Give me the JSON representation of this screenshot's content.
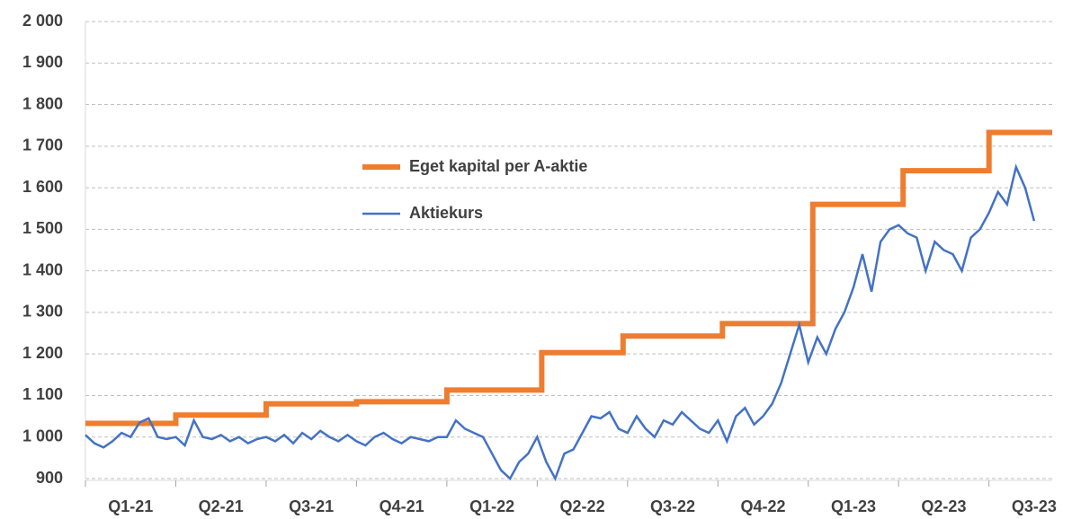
{
  "chart_data": {
    "type": "line",
    "categories": [
      "Q1-21",
      "Q2-21",
      "Q3-21",
      "Q4-21",
      "Q1-22",
      "Q2-22",
      "Q3-22",
      "Q4-22",
      "Q1-23",
      "Q2-23",
      "Q3-23"
    ],
    "xlim": [
      0,
      10.7
    ],
    "ylim": [
      900,
      2000
    ],
    "yticks": [
      {
        "value": 2000,
        "label": "2 000"
      },
      {
        "value": 1900,
        "label": "1 900"
      },
      {
        "value": 1800,
        "label": "1 800"
      },
      {
        "value": 1700,
        "label": "1 700"
      },
      {
        "value": 1600,
        "label": "1 600"
      },
      {
        "value": 1500,
        "label": "1 500"
      },
      {
        "value": 1400,
        "label": "1 400"
      },
      {
        "value": 1300,
        "label": "1 300"
      },
      {
        "value": 1200,
        "label": "1 200"
      },
      {
        "value": 1100,
        "label": "1 100"
      },
      {
        "value": 1000,
        "label": "1 000"
      },
      900
    ],
    "grid": true,
    "series": [
      {
        "name": "Eget kapital per A-aktie",
        "color": "#ed7d31",
        "x": [
          0,
          1,
          1,
          2,
          2,
          3,
          3,
          4,
          4,
          5.05,
          5.05,
          5.95,
          5.95,
          7.05,
          7.05,
          8.05,
          8.05,
          9.05,
          9.05,
          10,
          10,
          10.7
        ],
        "values": [
          1033,
          1033,
          1053,
          1053,
          1080,
          1080,
          1085,
          1085,
          1113,
          1113,
          1203,
          1203,
          1243,
          1243,
          1273,
          1273,
          1560,
          1560,
          1641,
          1641,
          1733,
          1733
        ]
      },
      {
        "name": "Aktiekurs",
        "color": "#4472c4",
        "x": [
          0,
          0.1,
          0.2,
          0.3,
          0.4,
          0.5,
          0.6,
          0.7,
          0.8,
          0.9,
          1,
          1.1,
          1.2,
          1.3,
          1.4,
          1.5,
          1.6,
          1.7,
          1.8,
          1.9,
          2,
          2.1,
          2.2,
          2.3,
          2.4,
          2.5,
          2.6,
          2.7,
          2.8,
          2.9,
          3,
          3.1,
          3.2,
          3.3,
          3.4,
          3.5,
          3.6,
          3.7,
          3.8,
          3.9,
          4,
          4.1,
          4.2,
          4.3,
          4.4,
          4.5,
          4.6,
          4.7,
          4.8,
          4.9,
          5,
          5.1,
          5.2,
          5.3,
          5.4,
          5.5,
          5.6,
          5.7,
          5.8,
          5.9,
          6,
          6.1,
          6.2,
          6.3,
          6.4,
          6.5,
          6.6,
          6.7,
          6.8,
          6.9,
          7,
          7.1,
          7.2,
          7.3,
          7.4,
          7.5,
          7.6,
          7.7,
          7.8,
          7.9,
          8,
          8.1,
          8.2,
          8.3,
          8.4,
          8.5,
          8.6,
          8.7,
          8.8,
          8.9,
          9,
          9.1,
          9.2,
          9.3,
          9.4,
          9.5,
          9.6,
          9.7,
          9.8,
          9.9,
          10,
          10.1,
          10.2,
          10.3,
          10.4,
          10.5
        ],
        "values": [
          1005,
          985,
          975,
          990,
          1010,
          1000,
          1035,
          1045,
          1000,
          995,
          1000,
          980,
          1040,
          1000,
          995,
          1005,
          990,
          1000,
          985,
          995,
          1000,
          990,
          1005,
          985,
          1010,
          995,
          1015,
          1000,
          990,
          1005,
          990,
          980,
          1000,
          1010,
          995,
          985,
          1000,
          995,
          990,
          1000,
          1000,
          1040,
          1020,
          1010,
          1000,
          960,
          920,
          900,
          940,
          960,
          1000,
          940,
          900,
          960,
          970,
          1010,
          1050,
          1045,
          1060,
          1020,
          1010,
          1050,
          1020,
          1000,
          1040,
          1030,
          1060,
          1040,
          1020,
          1010,
          1040,
          990,
          1050,
          1070,
          1030,
          1050,
          1080,
          1130,
          1200,
          1270,
          1180,
          1240,
          1200,
          1260,
          1300,
          1360,
          1440,
          1350,
          1470,
          1500,
          1510,
          1490,
          1480,
          1400,
          1470,
          1450,
          1440,
          1400,
          1480,
          1500,
          1540,
          1590,
          1560,
          1650,
          1600,
          1520
        ]
      }
    ]
  }
}
